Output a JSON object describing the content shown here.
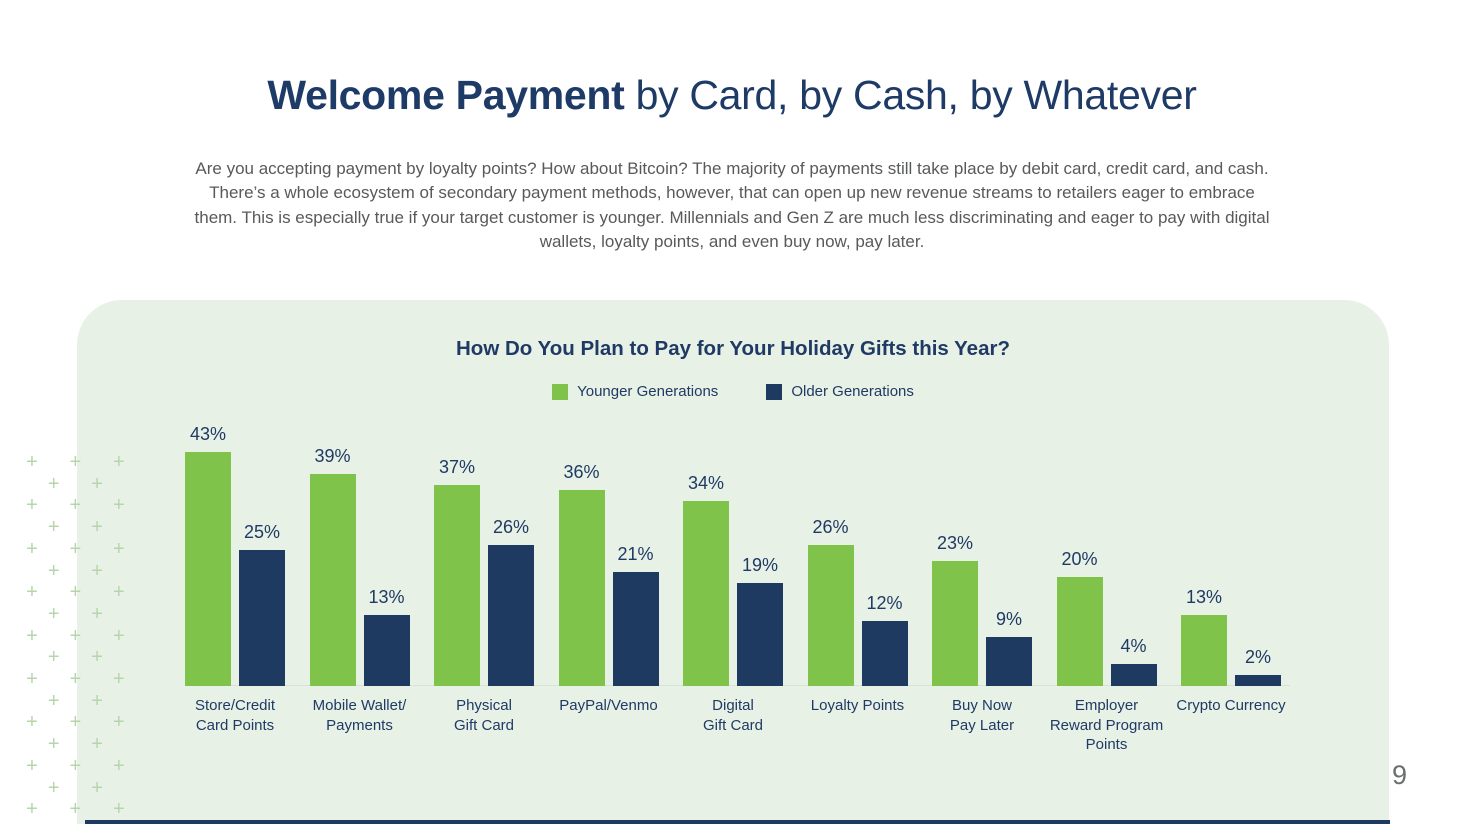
{
  "page": {
    "title_bold": "Welcome Payment",
    "title_rest": " by Card, by Cash, by Whatever",
    "intro": "Are you accepting payment by loyalty points? How about Bitcoin? The majority of payments still take place by debit card, credit card, and cash. There’s a whole ecosystem of secondary payment methods, however, that can open up new revenue streams to retailers eager to embrace them. This is especially true if your target customer is younger. Millennials and Gen Z are much less discriminating and eager to pay with digital wallets, loyalty points, and even buy now, pay later.",
    "page_number": "9"
  },
  "chart": {
    "title": "How Do You Plan to Pay for Your Holiday Gifts this Year?",
    "legend": [
      {
        "label": "Younger Generations",
        "color": "#80C34B"
      },
      {
        "label": "Older Generations",
        "color": "#1F3A60"
      }
    ]
  },
  "chart_data": {
    "type": "bar",
    "title": "How Do You Plan to Pay for Your Holiday Gifts this Year?",
    "categories": [
      "Store/Credit Card Points",
      "Mobile Wallet/Payments",
      "Physical Gift Card",
      "PayPal/Venmo",
      "Digital Gift Card",
      "Loyalty Points",
      "Buy Now Pay Later",
      "Employer Reward Program Points",
      "Crypto Currency"
    ],
    "category_labels_wrapped": [
      "Store/Credit\nCard Points",
      "Mobile Wallet/\nPayments",
      "Physical\nGift Card",
      "PayPal/Venmo",
      "Digital\nGift Card",
      "Loyalty Points",
      "Buy Now\nPay Later",
      "Employer\nReward Program\nPoints",
      "Crypto Currency"
    ],
    "series": [
      {
        "name": "Younger Generations",
        "color": "#80C34B",
        "values": [
          43,
          39,
          37,
          36,
          34,
          26,
          23,
          20,
          13
        ]
      },
      {
        "name": "Older Generations",
        "color": "#1F3A60",
        "values": [
          25,
          13,
          26,
          21,
          19,
          12,
          9,
          4,
          2
        ]
      }
    ],
    "value_suffix": "%",
    "ylim": [
      0,
      45
    ],
    "grid": false,
    "legend_position": "top",
    "value_labels": true
  },
  "colors": {
    "panel_background": "#E8F1E6",
    "heading_navy": "#1E3A66",
    "body_gray": "#58595B",
    "bar_green": "#80C34B",
    "bar_navy": "#1F3A60",
    "plus_pattern_green": "#B7D5AC"
  }
}
